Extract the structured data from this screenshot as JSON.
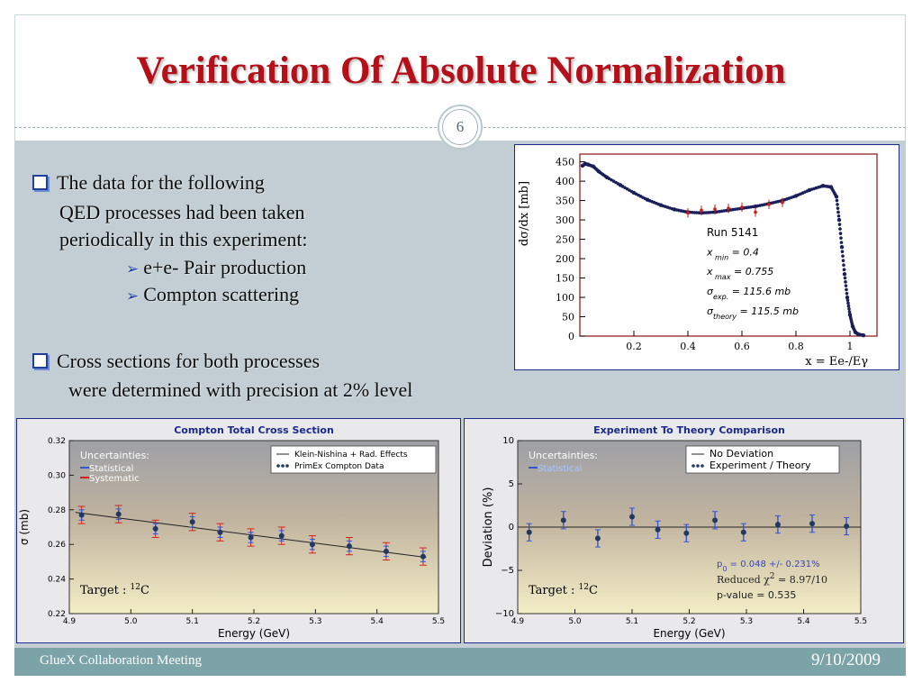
{
  "slide": {
    "title": "Verification Of Absolute Normalization",
    "number": "6",
    "bullets": [
      {
        "lines": [
          "The data for the following",
          "QED processes had been taken",
          "periodically in this experiment:"
        ]
      },
      {
        "lines": [
          "Cross sections for both processes",
          "were determined with precision at 2% level"
        ]
      }
    ],
    "subitems": [
      "e+e- Pair production",
      "Compton scattering"
    ],
    "footer_left": "GlueX Collaboration Meeting",
    "footer_right": "9/10/2009",
    "colors": {
      "title": "#b4101a",
      "body_bg": "#c2ced3",
      "footer_bg": "#7ba3a8",
      "panel_border": "#1b2b8a"
    }
  },
  "chart_data": [
    {
      "type": "scatter",
      "xlabel": "x = Ee-/Eγ",
      "ylabel": "dσ/dx [mb]",
      "xlim": [
        0,
        1.1
      ],
      "ylim": [
        0,
        470
      ],
      "xticks": [
        "0.2",
        "0.4",
        "0.6",
        "0.8",
        "1"
      ],
      "yticks": [
        "0",
        "50",
        "100",
        "150",
        "200",
        "250",
        "300",
        "350",
        "400",
        "450"
      ],
      "annotations": [
        "Run 5141",
        "x min = 0.4",
        "x max = 0.755",
        "σexp. = 115.6   mb",
        "σtheory = 115.5   mb"
      ],
      "series": [
        {
          "color": "#1a1f5a",
          "x": [
            0.01,
            0.02,
            0.03,
            0.05,
            0.07,
            0.1,
            0.15,
            0.2,
            0.25,
            0.3,
            0.35,
            0.4,
            0.45,
            0.5,
            0.55,
            0.6,
            0.65,
            0.7,
            0.75,
            0.8,
            0.85,
            0.9,
            0.93,
            0.95,
            0.96,
            0.97,
            0.98,
            0.99,
            1.0,
            1.01,
            1.02,
            1.03,
            1.05
          ],
          "y": [
            440,
            445,
            443,
            438,
            425,
            410,
            390,
            370,
            352,
            338,
            327,
            320,
            318,
            320,
            325,
            330,
            335,
            342,
            350,
            362,
            377,
            388,
            385,
            360,
            300,
            230,
            160,
            100,
            55,
            25,
            10,
            5,
            2
          ]
        },
        {
          "color": "#d01818",
          "x": [
            0.4,
            0.45,
            0.5,
            0.55,
            0.6,
            0.65,
            0.7,
            0.75
          ],
          "y": [
            318,
            325,
            328,
            330,
            333,
            320,
            340,
            345
          ]
        }
      ]
    },
    {
      "type": "scatter",
      "title": "Compton Total Cross Section",
      "xlabel": "Energy (GeV)",
      "ylabel": "σ (mb)",
      "xlim": [
        4.9,
        5.5
      ],
      "ylim": [
        0.22,
        0.32
      ],
      "xticks": [
        "4.9",
        "5.0",
        "5.1",
        "5.2",
        "5.3",
        "5.4",
        "5.5"
      ],
      "yticks": [
        "0.22",
        "0.24",
        "0.26",
        "0.28",
        "0.30",
        "0.32"
      ],
      "legend_text": "Uncertainties:",
      "legend_items": [
        "Statistical",
        "Systematic"
      ],
      "legend_box": [
        "Klein-Nishina + Rad. Effects",
        "PrimEx Compton Data"
      ],
      "target_label": "Target : 12C",
      "line": {
        "x": [
          4.91,
          5.48
        ],
        "y": [
          0.2785,
          0.2525
        ]
      },
      "x": [
        4.92,
        4.98,
        5.04,
        5.1,
        5.145,
        5.195,
        5.245,
        5.295,
        5.355,
        5.415,
        5.475
      ],
      "values": [
        0.277,
        0.2775,
        0.269,
        0.273,
        0.267,
        0.264,
        0.265,
        0.26,
        0.259,
        0.256,
        0.253
      ],
      "stat_err": 0.003,
      "sys_err": 0.005
    },
    {
      "type": "scatter",
      "title": "Experiment To Theory Comparison",
      "xlabel": "Energy (GeV)",
      "ylabel": "Deviation (%)",
      "xlim": [
        4.9,
        5.5
      ],
      "ylim": [
        -10,
        10
      ],
      "xticks": [
        "4.9",
        "5.0",
        "5.1",
        "5.2",
        "5.3",
        "5.4",
        "5.5"
      ],
      "yticks": [
        "-10",
        "-5",
        "0",
        "5",
        "10"
      ],
      "legend_text": "Uncertainties:",
      "legend_items": [
        "Statistical"
      ],
      "legend_box": [
        "No Deviation",
        "Experiment / Theory"
      ],
      "target_label": "Target : 12C",
      "fit_p0": "p0 = 0.048 +/- 0.231%",
      "fit_chi2": "Reduced χ2 = 8.97/10",
      "fit_pvalue": "p-value = 0.535",
      "x": [
        4.92,
        4.98,
        5.04,
        5.1,
        5.145,
        5.195,
        5.245,
        5.295,
        5.355,
        5.415,
        5.475
      ],
      "values": [
        -0.6,
        0.8,
        -1.3,
        1.2,
        -0.3,
        -0.7,
        0.8,
        -0.6,
        0.3,
        0.4,
        0.1
      ],
      "err": 1.0
    }
  ]
}
